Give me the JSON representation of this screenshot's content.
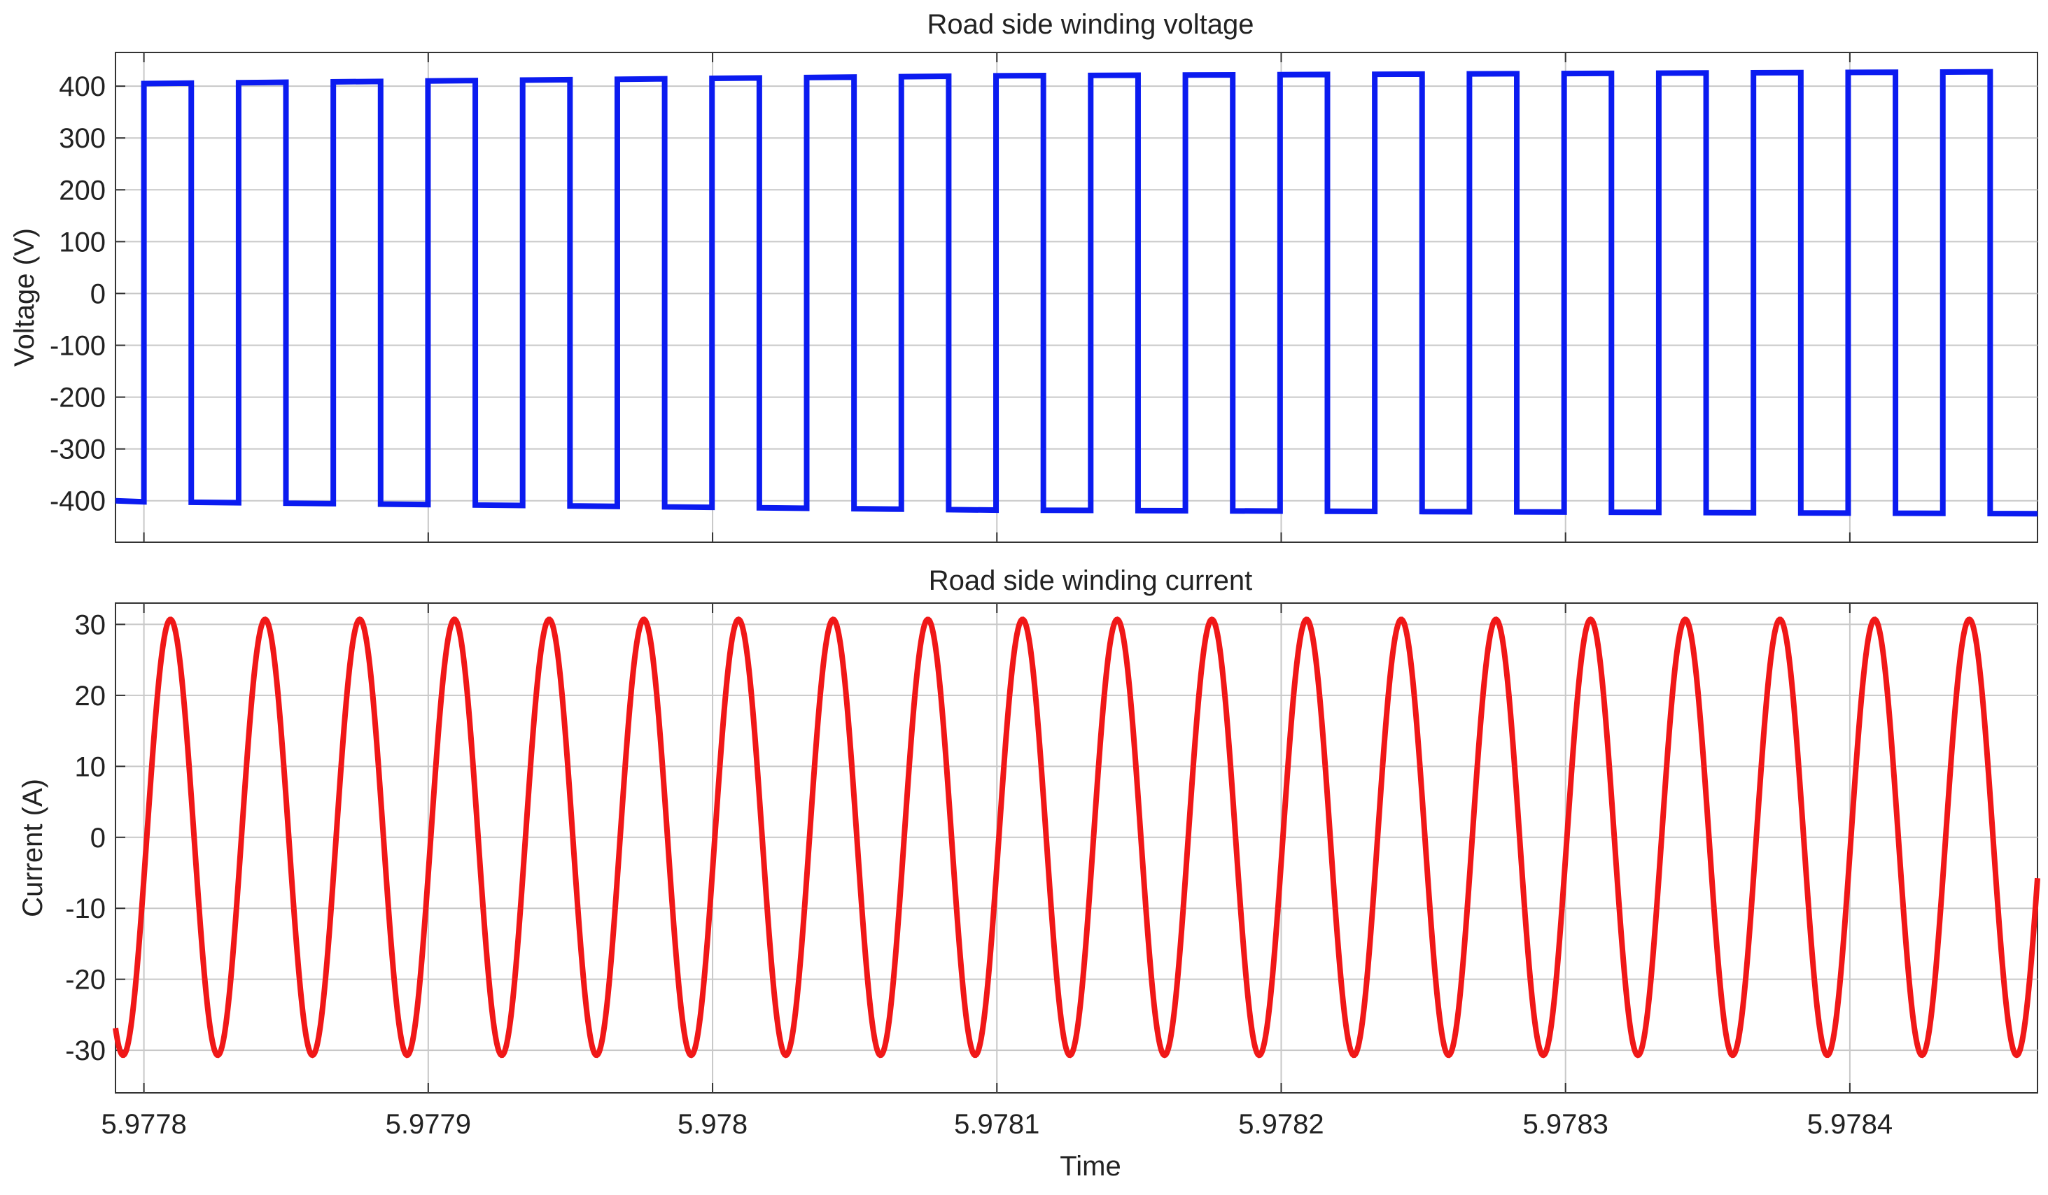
{
  "chart_data": [
    {
      "type": "line",
      "title": "Road side winding voltage",
      "xlabel": "",
      "ylabel": "Voltage (V)",
      "xlim": [
        5.97779,
        5.978466
      ],
      "ylim": [
        -480,
        465
      ],
      "x_ticks": [
        5.9778,
        5.9779,
        5.978,
        5.9781,
        5.9782,
        5.9783,
        5.9784
      ],
      "x_tick_labels": [
        "",
        "",
        "",
        "",
        "",
        "",
        ""
      ],
      "y_ticks": [
        400,
        300,
        200,
        100,
        0,
        -100,
        -200,
        -300,
        -400
      ],
      "y_tick_labels": [
        "400",
        "300",
        "200",
        "100",
        "0",
        "-100",
        "-200",
        "-300",
        "-400"
      ],
      "grid": true,
      "color": "#0b1bf0",
      "series": [
        {
          "waveform": "square",
          "period": 3.33e-05,
          "first_rising_edge": 5.9778,
          "duty": 0.5,
          "x": [
            5.97779,
            5.9778,
            5.9781,
            5.978466
          ],
          "high_values": [
            405,
            405,
            420,
            428
          ],
          "low_values": [
            -400,
            -402,
            -418,
            -425
          ]
        }
      ]
    },
    {
      "type": "line",
      "title": "Road side winding current",
      "xlabel": "Time",
      "ylabel": "Current (A)",
      "xlim": [
        5.97779,
        5.978466
      ],
      "ylim": [
        -36,
        33
      ],
      "x_ticks": [
        5.9778,
        5.9779,
        5.978,
        5.9781,
        5.9782,
        5.9783,
        5.9784
      ],
      "x_tick_labels": [
        "5.9778",
        "5.9779",
        "5.978",
        "5.9781",
        "5.9782",
        "5.9783",
        "5.9784"
      ],
      "y_ticks": [
        30,
        20,
        10,
        0,
        -10,
        -20,
        -30
      ],
      "y_tick_labels": [
        "30",
        "20",
        "10",
        "0",
        "-10",
        "-20",
        "-30"
      ],
      "grid": true,
      "color": "#f01818",
      "series": [
        {
          "waveform": "sine",
          "amplitude": 30.7,
          "period": 3.33e-05,
          "zero_crossing_rising": 5.977801
        }
      ]
    }
  ]
}
